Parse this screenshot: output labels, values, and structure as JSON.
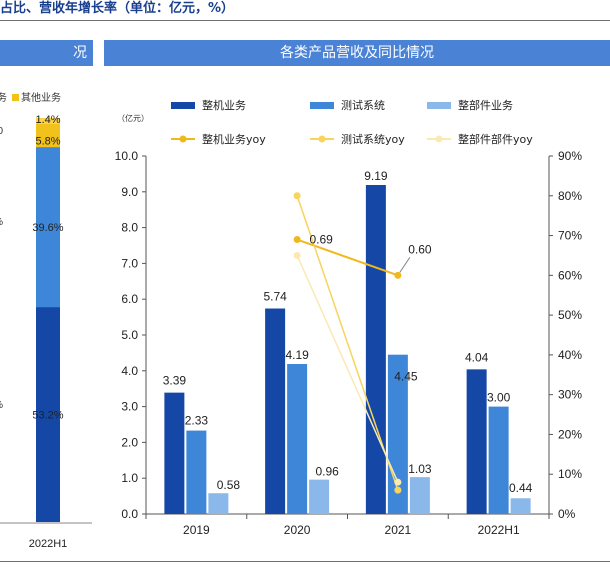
{
  "figure_title": "占比、营收年增长率（单位：亿元，%）",
  "left_panel": {
    "header": "况",
    "legend_partial": "务",
    "legend_other": "其他业务",
    "edge_labels": [
      "%",
      "%"
    ],
    "edge_tick": "0"
  },
  "right_panel": {
    "header": "各类产品营收及同比情况",
    "unit_label": "（亿元）"
  },
  "colors": {
    "complete": "#1447a6",
    "test": "#3d86d8",
    "parts": "#8bb8ea",
    "other": "#f2c21c",
    "complete_yoy": "#f0b81c",
    "test_yoy": "#f7d45c",
    "parts_yoy": "#fbe9b4",
    "header_bg": "#4a82d6"
  },
  "chart_data": [
    {
      "type": "bar",
      "stacked": true,
      "categories": [
        "2022H1"
      ],
      "series": [
        {
          "values": [
            53.2
          ],
          "labels": [
            "53.2%"
          ]
        },
        {
          "values": [
            39.6
          ],
          "labels": [
            "39.6%"
          ]
        },
        {
          "name": "其他业务",
          "values": [
            5.8
          ],
          "labels": [
            "5.8%"
          ]
        },
        {
          "values": [
            1.4
          ],
          "labels": [
            "1.4%"
          ]
        }
      ]
    },
    {
      "type": "bar",
      "title": "各类产品营收及同比情况",
      "ylabel": "（亿元）",
      "categories": [
        "2019",
        "2020",
        "2021",
        "2022H1"
      ],
      "ylim": [
        0,
        10
      ],
      "yticks": [
        "0.0",
        "1.0",
        "2.0",
        "3.0",
        "4.0",
        "5.0",
        "6.0",
        "7.0",
        "8.0",
        "9.0",
        "10.0"
      ],
      "y2lim": [
        0,
        90
      ],
      "y2ticks": [
        "0%",
        "10%",
        "20%",
        "30%",
        "40%",
        "50%",
        "60%",
        "70%",
        "80%",
        "90%"
      ],
      "series": [
        {
          "name": "整机业务",
          "values": [
            3.39,
            5.74,
            9.19,
            4.04
          ],
          "labels": [
            "3.39",
            "5.74",
            "9.19",
            "4.04"
          ]
        },
        {
          "name": "测试系统",
          "values": [
            2.33,
            4.19,
            4.45,
            3.0
          ],
          "labels": [
            "2.33",
            "4.19",
            "4.45",
            "3.00"
          ]
        },
        {
          "name": "整部件业务",
          "values": [
            0.58,
            0.96,
            1.03,
            0.44
          ],
          "labels": [
            "0.58",
            "0.96",
            "1.03",
            "0.44"
          ]
        }
      ],
      "line_series": [
        {
          "name": "整机业务yoy",
          "values": [
            null,
            69,
            60,
            null
          ],
          "labels": [
            "",
            "0.69",
            "0.60",
            ""
          ]
        },
        {
          "name": "测试系统yoy",
          "values": [
            null,
            80,
            6,
            null
          ],
          "labels": [
            "",
            "",
            "",
            ""
          ]
        },
        {
          "name": "整部件部件yoy",
          "values": [
            null,
            65,
            8,
            null
          ],
          "labels": [
            "",
            "",
            "",
            ""
          ]
        }
      ],
      "legend_position": "top"
    }
  ]
}
